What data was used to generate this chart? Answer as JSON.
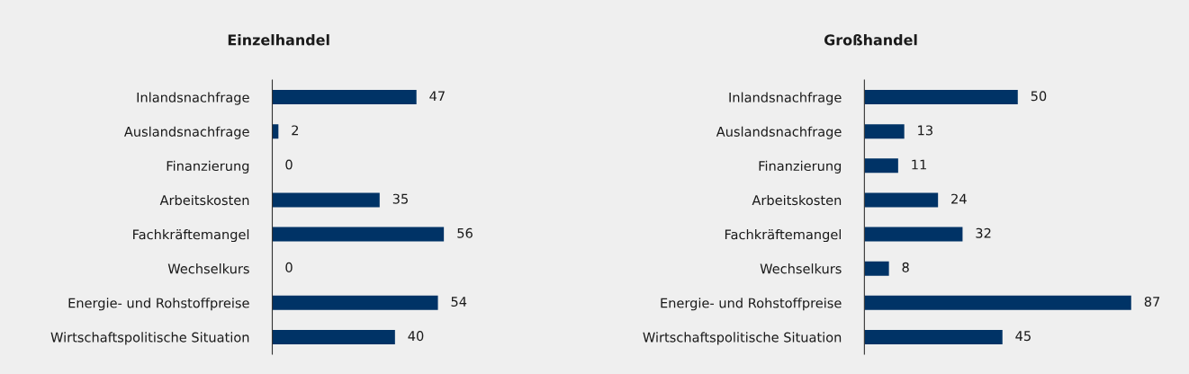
{
  "chart_data": [
    {
      "type": "bar",
      "orientation": "horizontal",
      "title": "Einzelhandel",
      "categories": [
        "Inlandsnachfrage",
        "Auslandsnachfrage",
        "Finanzierung",
        "Arbeitskosten",
        "Fachkräftemangel",
        "Wechselkurs",
        "Energie- und Rohstoffpreise",
        "Wirtschaftspolitische Situation"
      ],
      "values": [
        47,
        2,
        0,
        35,
        56,
        0,
        54,
        40
      ],
      "color": "#003366",
      "data_labels": true,
      "tick_labels": "y",
      "grid": false,
      "legend": false
    },
    {
      "type": "bar",
      "orientation": "horizontal",
      "title": "Großhandel",
      "categories": [
        "Inlandsnachfrage",
        "Auslandsnachfrage",
        "Finanzierung",
        "Arbeitskosten",
        "Fachkräftemangel",
        "Wechselkurs",
        "Energie- und Rohstoffpreise",
        "Wirtschaftspolitische Situation"
      ],
      "values": [
        50,
        13,
        11,
        24,
        32,
        8,
        87,
        45
      ],
      "color": "#003366",
      "data_labels": true,
      "tick_labels": "y",
      "grid": false,
      "legend": false
    }
  ]
}
